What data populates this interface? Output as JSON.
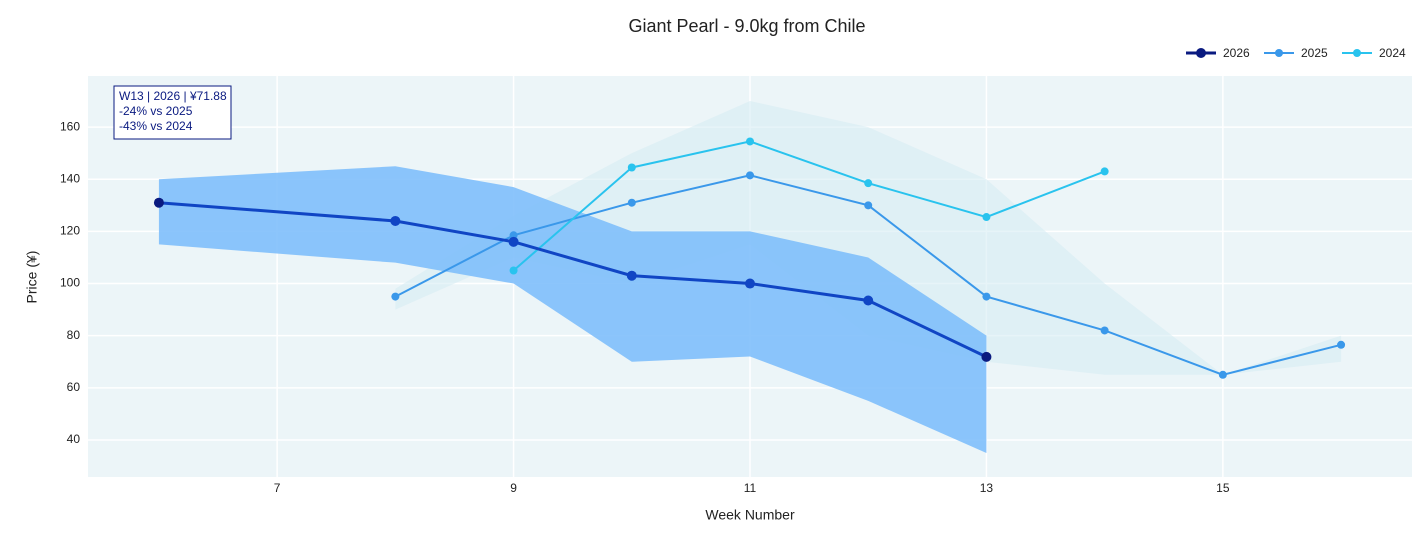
{
  "chart_data": {
    "type": "line",
    "title": "Giant Pearl - 9.0kg from Chile",
    "x_label": "Week Number",
    "y_label": "Price (¥)",
    "xlim": [
      5.4,
      16.6
    ],
    "ylim": [
      25.8,
      179.6
    ],
    "xticks": [
      7,
      9,
      11,
      13,
      15
    ],
    "yticks": [
      40,
      60,
      80,
      100,
      120,
      140,
      160
    ],
    "grid": true,
    "legend": "top-right",
    "annotation": [
      "W13 | 2026 | ¥71.88",
      "-24% vs 2025",
      "-43% vs 2024"
    ],
    "series": [
      {
        "name": "2024",
        "color": "#29c3ee",
        "x": [
          9,
          10,
          11,
          12,
          13,
          14
        ],
        "values": [
          105,
          144.5,
          154.5,
          138.5,
          125.5,
          143
        ]
      },
      {
        "name": "2025",
        "color": "#3a98ea",
        "band_color": "#d7ecf3",
        "x": [
          8,
          9,
          10,
          11,
          12,
          13,
          14,
          15,
          16
        ],
        "values": [
          95,
          118.5,
          131,
          141.5,
          130,
          95,
          82,
          65,
          76.5
        ],
        "band_upper": [
          98,
          126,
          150,
          170,
          160,
          140,
          100,
          65,
          80
        ],
        "band_lower": [
          90,
          110,
          100,
          115,
          80,
          70,
          65,
          65,
          70
        ]
      },
      {
        "name": "2026",
        "color": "#1045c4",
        "marker_color": "#0a1a80",
        "band_color": "#80bffb",
        "x": [
          6,
          8,
          9,
          10,
          11,
          12,
          13
        ],
        "values": [
          131,
          124,
          116,
          103,
          100,
          93.5,
          71.88
        ],
        "band_upper": [
          140,
          145,
          137,
          120,
          120,
          110,
          80
        ],
        "band_lower": [
          115,
          108,
          100,
          70,
          72,
          55,
          35
        ]
      }
    ]
  }
}
